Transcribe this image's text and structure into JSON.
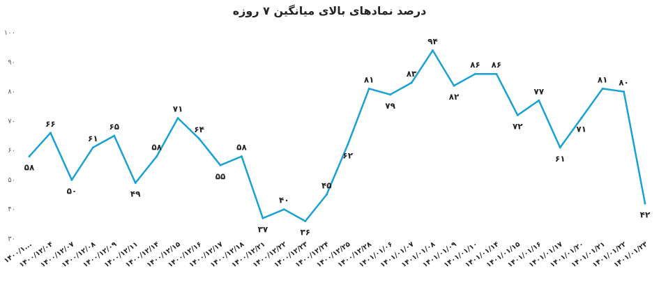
{
  "chart_data": {
    "type": "line",
    "title": "درصد نمادهای بالای میانگین ۷ روزه",
    "xlabel": "",
    "ylabel": "",
    "ylim": [
      30,
      100
    ],
    "yticks": [
      "۳۰",
      "۴۰",
      "۵۰",
      "۶۰",
      "۷۰",
      "۸۰",
      "۹۰",
      "۱۰۰"
    ],
    "ytick_values": [
      30,
      40,
      50,
      60,
      70,
      80,
      90,
      100
    ],
    "grid": false,
    "legend": "none",
    "line_color": "#1aa1d3",
    "categories": [
      "۱۴۰۰/۱...",
      "۱۴۰۰/۱۲/۰۴",
      "۱۴۰۰/۱۲/۰۷",
      "۱۴۰۰/۱۲/۰۸",
      "۱۴۰۰/۱۲/۰۹",
      "۱۴۰۰/۱۲/۱۱",
      "۱۴۰۰/۱۲/۱۴",
      "۱۴۰۰/۱۲/۱۵",
      "۱۴۰۰/۱۲/۱۶",
      "۱۴۰۰/۱۲/۱۷",
      "۱۴۰۰/۱۲/۱۸",
      "۱۴۰۰/۱۲/۲۱",
      "۱۴۰۰/۱۲/۲۲",
      "۱۴۰۰/۱۲/۲۳",
      "۱۴۰۰/۱۲/۲۴",
      "۱۴۰۰/۱۲/۲۵",
      "۱۴۰۰/۱۲/۲۸",
      "۱۴۰۱/۰۱/۰۶",
      "۱۴۰۱/۰۱/۰۷",
      "۱۴۰۱/۰۱/۰۸",
      "۱۴۰۱/۰۱/۰۹",
      "۱۴۰۱/۰۱/۱۰",
      "۱۴۰۱/۰۱/۱۴",
      "۱۴۰۱/۰۱/۱۵",
      "۱۴۰۱/۰۱/۱۶",
      "۱۴۰۱/۰۱/۱۷",
      "۱۴۰۱/۰۱/۲۰",
      "۱۴۰۱/۰۱/۲۱",
      "۱۴۰۱/۰۱/۲۲",
      "۱۴۰۱/۰۱/۲۳"
    ],
    "values": [
      58,
      66,
      50,
      61,
      65,
      49,
      58,
      71,
      64,
      55,
      58,
      37,
      40,
      36,
      45,
      62,
      81,
      79,
      83,
      94,
      82,
      86,
      86,
      72,
      77,
      61,
      71,
      81,
      80,
      42
    ],
    "data_labels": [
      "۵۸",
      "۶۶",
      "۵۰",
      "۶۱",
      "۶۵",
      "۴۹",
      "۵۸",
      "۷۱",
      "۶۴",
      "۵۵",
      "۵۸",
      "۳۷",
      "۴۰",
      "۳۶",
      "۴۵",
      "۶۲",
      "۸۱",
      "۷۹",
      "۸۳",
      "۹۴",
      "۸۲",
      "۸۶",
      "۸۶",
      "۷۲",
      "۷۷",
      "۶۱",
      "۷۱",
      "۸۱",
      "۸۰",
      "۴۲"
    ],
    "label_position": [
      "below",
      "above",
      "below",
      "above",
      "above",
      "below",
      "above",
      "above",
      "above",
      "below",
      "above",
      "below",
      "above",
      "below",
      "above",
      "below",
      "above",
      "below",
      "above",
      "above",
      "below",
      "above",
      "above",
      "below",
      "above",
      "below",
      "below",
      "above",
      "above",
      "below"
    ]
  }
}
